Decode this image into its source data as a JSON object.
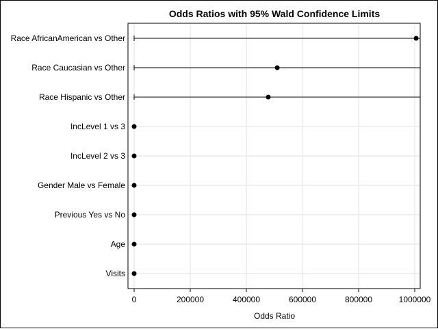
{
  "chart_data": {
    "type": "scatter",
    "title": "Odds Ratios with 95% Wald Confidence Limits",
    "xlabel": "Odds Ratio",
    "ylabel": "",
    "xlim": [
      0,
      1020000
    ],
    "xticks": [
      0,
      200000,
      400000,
      600000,
      800000,
      1000000
    ],
    "xtick_labels": [
      "0",
      "200000",
      "400000",
      "600000",
      "800000",
      "1000000"
    ],
    "grid": true,
    "legend": "none",
    "categories": [
      "Race AfricanAmerican vs Other",
      "Race Caucasian vs Other",
      "Race Hispanic vs Other",
      "IncLevel 1 vs 3",
      "IncLevel 2 vs 3",
      "Gender Male vs Female",
      "Previous Yes vs No",
      "Age",
      "Visits"
    ],
    "series": [
      {
        "estimate": [
          1005000,
          510000,
          478000,
          1,
          1,
          1,
          1,
          1,
          1
        ],
        "lower": [
          0,
          0,
          0,
          1,
          1,
          1,
          1,
          1,
          1
        ],
        "upper": [
          1020000,
          1020000,
          1020000,
          1,
          1,
          1,
          1,
          1,
          1
        ]
      }
    ],
    "colors": {
      "marker": "#000000",
      "grid": "#e0e0e0",
      "axis": "#000000"
    }
  }
}
